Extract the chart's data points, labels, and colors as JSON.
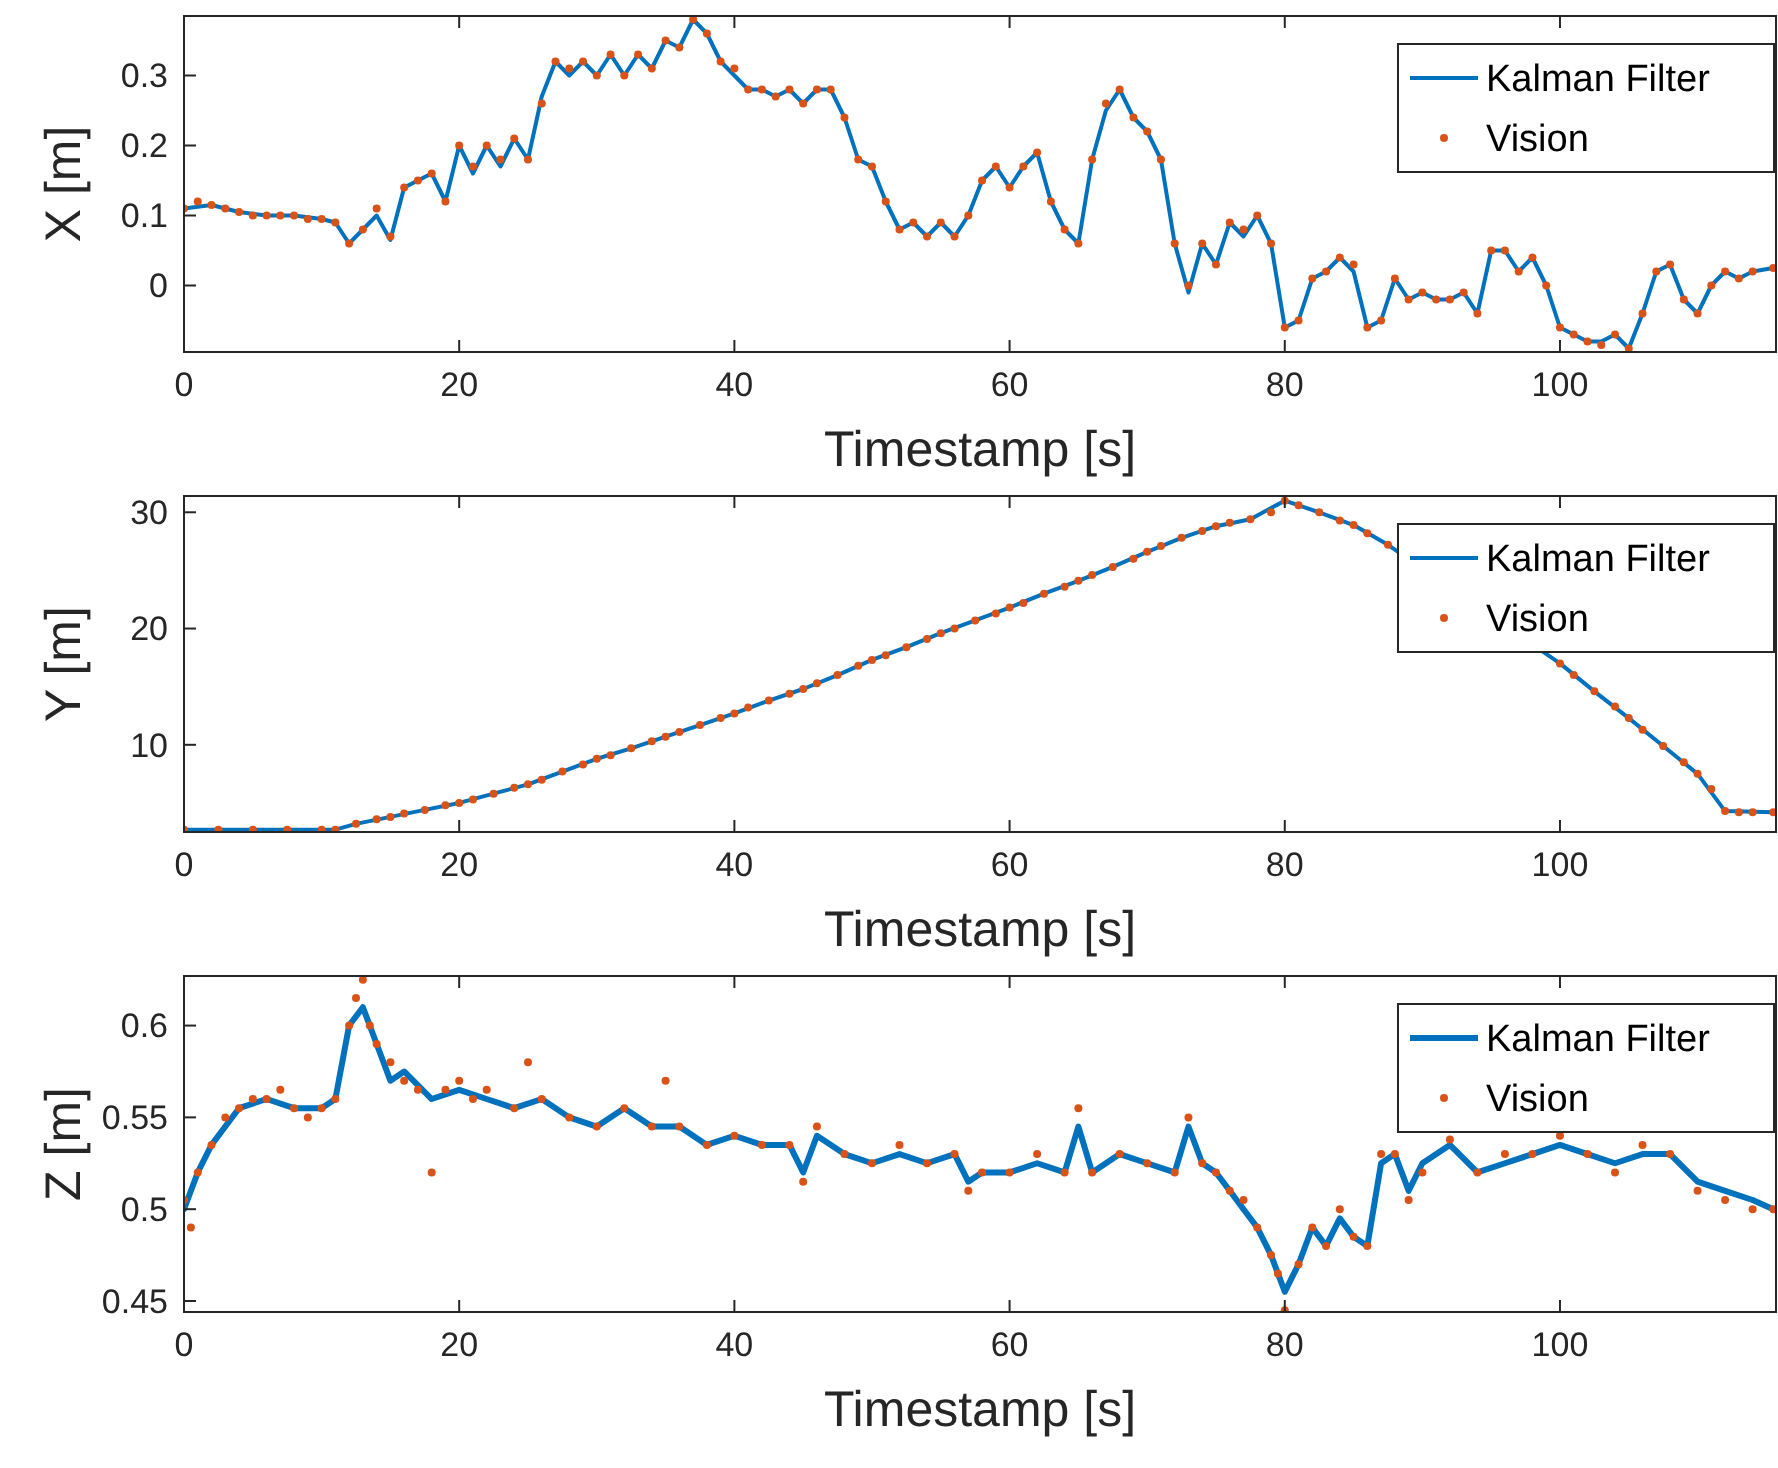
{
  "chart_data": [
    {
      "type": "line",
      "xlabel": "Timestamp [s]",
      "ylabel": "X [m]",
      "xlim": [
        0,
        115.7
      ],
      "xticks": [
        0,
        20,
        40,
        60,
        80,
        100
      ],
      "ylim": [
        -0.095,
        0.385
      ],
      "yticks": [
        0,
        0.1,
        0.2,
        0.3
      ],
      "legend": "top right",
      "series": [
        {
          "name": "Kalman Filter",
          "type": "line",
          "color": "#0072bd",
          "x": [
            0,
            2,
            4,
            6,
            8,
            10,
            11,
            12,
            13,
            14,
            15,
            16,
            17,
            18,
            19,
            20,
            21,
            22,
            23,
            24,
            25,
            26,
            27,
            28,
            29,
            30,
            31,
            32,
            33,
            34,
            35,
            36,
            37,
            38,
            39,
            40,
            41,
            42,
            43,
            44,
            45,
            46,
            47,
            48,
            49,
            50,
            51,
            52,
            53,
            54,
            55,
            56,
            57,
            58,
            59,
            60,
            61,
            62,
            63,
            64,
            65,
            66,
            67,
            68,
            69,
            70,
            71,
            72,
            73,
            74,
            75,
            76,
            77,
            78,
            79,
            80,
            81,
            82,
            83,
            84,
            85,
            86,
            87,
            88,
            89,
            90,
            91,
            92,
            93,
            94,
            95,
            96,
            97,
            98,
            99,
            100,
            101,
            102,
            103,
            104,
            105,
            106,
            107,
            108,
            109,
            110,
            111,
            112,
            113,
            114,
            115.5
          ],
          "values": [
            0.11,
            0.115,
            0.105,
            0.1,
            0.1,
            0.095,
            0.09,
            0.06,
            0.08,
            0.1,
            0.065,
            0.14,
            0.15,
            0.16,
            0.12,
            0.2,
            0.16,
            0.2,
            0.17,
            0.21,
            0.18,
            0.27,
            0.32,
            0.3,
            0.32,
            0.3,
            0.33,
            0.3,
            0.33,
            0.31,
            0.35,
            0.34,
            0.38,
            0.36,
            0.32,
            0.3,
            0.28,
            0.28,
            0.27,
            0.28,
            0.26,
            0.28,
            0.28,
            0.24,
            0.18,
            0.17,
            0.12,
            0.08,
            0.09,
            0.07,
            0.09,
            0.07,
            0.1,
            0.15,
            0.17,
            0.14,
            0.17,
            0.19,
            0.12,
            0.08,
            0.06,
            0.18,
            0.25,
            0.28,
            0.24,
            0.22,
            0.18,
            0.06,
            -0.01,
            0.06,
            0.03,
            0.09,
            0.07,
            0.1,
            0.06,
            -0.06,
            -0.05,
            0.01,
            0.02,
            0.04,
            0.02,
            -0.06,
            -0.05,
            0.01,
            -0.02,
            -0.01,
            -0.02,
            -0.02,
            -0.01,
            -0.04,
            0.05,
            0.05,
            0.02,
            0.04,
            0,
            -0.06,
            -0.07,
            -0.08,
            -0.08,
            -0.07,
            -0.09,
            -0.04,
            0.02,
            0.03,
            -0.02,
            -0.04,
            0,
            0.02,
            0.01,
            0.02,
            0.025
          ]
        },
        {
          "name": "Vision",
          "type": "scatter",
          "marker": "circle",
          "color": "#d95319",
          "x": [
            0,
            1,
            2,
            3,
            4,
            5,
            6,
            7,
            8,
            9,
            10,
            11,
            12,
            13,
            14,
            15,
            16,
            17,
            18,
            19,
            20,
            21,
            22,
            23,
            24,
            25,
            26,
            27,
            28,
            29,
            30,
            31,
            32,
            33,
            34,
            35,
            36,
            37,
            38,
            39,
            40,
            41,
            42,
            43,
            44,
            45,
            46,
            47,
            48,
            49,
            50,
            51,
            52,
            53,
            54,
            55,
            56,
            57,
            58,
            59,
            60,
            61,
            62,
            63,
            64,
            65,
            66,
            67,
            68,
            69,
            70,
            71,
            72,
            73,
            74,
            75,
            76,
            77,
            78,
            79,
            80,
            81,
            82,
            83,
            84,
            85,
            86,
            87,
            88,
            89,
            90,
            91,
            92,
            93,
            94,
            95,
            96,
            97,
            98,
            99,
            100,
            101,
            102,
            103,
            104,
            105,
            106,
            107,
            108,
            109,
            110,
            111,
            112,
            113,
            114,
            115.5
          ],
          "values": [
            0.11,
            0.12,
            0.115,
            0.11,
            0.105,
            0.1,
            0.1,
            0.1,
            0.1,
            0.095,
            0.095,
            0.09,
            0.06,
            0.08,
            0.11,
            0.07,
            0.14,
            0.15,
            0.16,
            0.12,
            0.2,
            0.17,
            0.2,
            0.18,
            0.21,
            0.18,
            0.26,
            0.32,
            0.31,
            0.32,
            0.3,
            0.33,
            0.3,
            0.33,
            0.31,
            0.35,
            0.34,
            0.38,
            0.36,
            0.32,
            0.31,
            0.28,
            0.28,
            0.27,
            0.28,
            0.26,
            0.28,
            0.28,
            0.24,
            0.18,
            0.17,
            0.12,
            0.08,
            0.09,
            0.07,
            0.09,
            0.07,
            0.1,
            0.15,
            0.17,
            0.14,
            0.17,
            0.19,
            0.12,
            0.08,
            0.06,
            0.18,
            0.26,
            0.28,
            0.24,
            0.22,
            0.18,
            0.06,
            0,
            0.06,
            0.03,
            0.09,
            0.08,
            0.1,
            0.06,
            -0.06,
            -0.05,
            0.01,
            0.02,
            0.04,
            0.03,
            -0.06,
            -0.05,
            0.01,
            -0.02,
            -0.01,
            -0.02,
            -0.02,
            -0.01,
            -0.04,
            0.05,
            0.05,
            0.02,
            0.04,
            0,
            -0.06,
            -0.07,
            -0.08,
            -0.085,
            -0.07,
            -0.09,
            -0.04,
            0.02,
            0.03,
            -0.02,
            -0.04,
            0,
            0.02,
            0.01,
            0.02,
            0.025
          ]
        }
      ]
    },
    {
      "type": "line",
      "xlabel": "Timestamp [s]",
      "ylabel": "Y [m]",
      "xlim": [
        0,
        115.7
      ],
      "xticks": [
        0,
        20,
        40,
        60,
        80,
        100
      ],
      "ylim": [
        2.5,
        31.4
      ],
      "yticks": [
        10,
        20,
        30
      ],
      "legend": "top right",
      "series": [
        {
          "name": "Kalman Filter",
          "type": "line",
          "color": "#0072bd",
          "x": [
            0,
            5,
            11,
            12.5,
            15,
            17.5,
            20,
            22.5,
            25,
            27.5,
            30,
            32.5,
            35,
            37.5,
            40,
            42.5,
            45,
            47.5,
            50,
            52.5,
            55,
            57.5,
            60,
            62.5,
            65,
            67.5,
            70,
            72.5,
            75,
            77.5,
            80,
            82.5,
            85,
            87.5,
            100,
            102.5,
            105,
            107.5,
            110,
            112,
            115.5
          ],
          "values": [
            2.7,
            2.7,
            2.7,
            3.2,
            3.8,
            4.4,
            5,
            5.8,
            6.6,
            7.7,
            8.8,
            9.7,
            10.7,
            11.7,
            12.7,
            13.8,
            14.8,
            16,
            17.3,
            18.4,
            19.6,
            20.7,
            21.8,
            23,
            24.1,
            25.3,
            26.6,
            27.8,
            28.8,
            29.4,
            31,
            30,
            28.9,
            27.2,
            17,
            14.6,
            12.3,
            9.9,
            7.5,
            4.3,
            4.2
          ]
        },
        {
          "name": "Vision",
          "type": "scatter",
          "marker": "circle",
          "color": "#d95319",
          "x": [
            0,
            2.5,
            5,
            7.5,
            10,
            11,
            12.5,
            14,
            15,
            16,
            17.5,
            19,
            20,
            21,
            22.5,
            24,
            25,
            26,
            27.5,
            29,
            30,
            31,
            32.5,
            34,
            35,
            36,
            37.5,
            39,
            40,
            41,
            42.5,
            44,
            45,
            46,
            47.5,
            49,
            50,
            51,
            52.5,
            54,
            55,
            56,
            57.5,
            59,
            60,
            61,
            62.5,
            64,
            65,
            66,
            67.5,
            69,
            70,
            71,
            72.5,
            74,
            75,
            76,
            77.5,
            79,
            80,
            81,
            82.5,
            84,
            85,
            86,
            87.5,
            100,
            101,
            102.5,
            104,
            105,
            106,
            107.5,
            109,
            110,
            111,
            112,
            113,
            114,
            115.5
          ],
          "values": [
            2.7,
            2.7,
            2.7,
            2.7,
            2.7,
            2.7,
            3.2,
            3.6,
            3.8,
            4.1,
            4.4,
            4.8,
            5,
            5.3,
            5.8,
            6.3,
            6.6,
            7,
            7.7,
            8.3,
            8.8,
            9.1,
            9.7,
            10.3,
            10.7,
            11.1,
            11.7,
            12.3,
            12.7,
            13.2,
            13.8,
            14.4,
            14.8,
            15.3,
            16,
            16.8,
            17.3,
            17.7,
            18.4,
            19.1,
            19.6,
            20,
            20.7,
            21.3,
            21.8,
            22.2,
            23,
            23.6,
            24.1,
            24.6,
            25.3,
            26,
            26.6,
            27.1,
            27.8,
            28.4,
            28.8,
            29.1,
            29.4,
            30,
            31,
            30.6,
            30,
            29.3,
            28.9,
            28.2,
            27.2,
            17,
            16,
            14.6,
            13.3,
            12.3,
            11.3,
            9.9,
            8.5,
            7.5,
            6.2,
            4.3,
            4.2,
            4.2,
            4.2
          ]
        }
      ]
    },
    {
      "type": "line",
      "xlabel": "Timestamp [s]",
      "ylabel": "Z [m]",
      "xlim": [
        0,
        115.7
      ],
      "xticks": [
        0,
        20,
        40,
        60,
        80,
        100
      ],
      "ylim": [
        0.444,
        0.627
      ],
      "yticks": [
        0.45,
        0.5,
        0.55,
        0.6
      ],
      "legend": "top right",
      "series": [
        {
          "name": "Kalman Filter",
          "type": "line",
          "color": "#0072bd",
          "x": [
            0,
            1,
            2,
            3,
            4,
            6,
            8,
            10,
            11,
            12,
            13,
            14,
            15,
            16,
            18,
            20,
            22,
            24,
            26,
            28,
            30,
            32,
            34,
            36,
            38,
            40,
            42,
            44,
            45,
            46,
            48,
            50,
            52,
            54,
            56,
            57,
            58,
            60,
            62,
            64,
            65,
            66,
            68,
            70,
            72,
            73,
            74,
            75,
            76,
            77,
            78,
            79,
            80,
            81,
            82,
            83,
            84,
            85,
            86,
            87,
            88,
            89,
            90,
            92,
            94,
            96,
            98,
            100,
            102,
            104,
            106,
            108,
            110,
            112,
            114,
            115.5
          ],
          "values": [
            0.5,
            0.52,
            0.535,
            0.545,
            0.555,
            0.56,
            0.555,
            0.555,
            0.56,
            0.6,
            0.61,
            0.59,
            0.57,
            0.575,
            0.56,
            0.565,
            0.56,
            0.555,
            0.56,
            0.55,
            0.545,
            0.555,
            0.545,
            0.545,
            0.535,
            0.54,
            0.535,
            0.535,
            0.52,
            0.54,
            0.53,
            0.525,
            0.53,
            0.525,
            0.53,
            0.515,
            0.52,
            0.52,
            0.525,
            0.52,
            0.545,
            0.52,
            0.53,
            0.525,
            0.52,
            0.545,
            0.525,
            0.52,
            0.51,
            0.5,
            0.49,
            0.475,
            0.455,
            0.47,
            0.49,
            0.48,
            0.495,
            0.485,
            0.48,
            0.525,
            0.53,
            0.51,
            0.525,
            0.535,
            0.52,
            0.525,
            0.53,
            0.535,
            0.53,
            0.525,
            0.53,
            0.53,
            0.515,
            0.51,
            0.505,
            0.5
          ]
        },
        {
          "name": "Vision",
          "type": "scatter",
          "marker": "circle",
          "color": "#d95319",
          "x": [
            0,
            0.5,
            1,
            2,
            3,
            4,
            5,
            6,
            7,
            8,
            9,
            10,
            11,
            12,
            12.5,
            13,
            13.5,
            14,
            15,
            16,
            17,
            18,
            19,
            20,
            21,
            22,
            24,
            25,
            26,
            28,
            30,
            32,
            34,
            35,
            36,
            38,
            40,
            42,
            44,
            45,
            46,
            48,
            50,
            52,
            54,
            56,
            57,
            58,
            60,
            62,
            64,
            65,
            66,
            68,
            70,
            72,
            73,
            74,
            75,
            76,
            77,
            78,
            79,
            79.5,
            80,
            81,
            82,
            83,
            84,
            85,
            86,
            87,
            88,
            89,
            90,
            92,
            94,
            96,
            98,
            100,
            102,
            104,
            106,
            108,
            110,
            112,
            114,
            115.5
          ],
          "values": [
            0.505,
            0.49,
            0.52,
            0.535,
            0.55,
            0.555,
            0.56,
            0.56,
            0.565,
            0.555,
            0.55,
            0.555,
            0.56,
            0.6,
            0.615,
            0.625,
            0.6,
            0.59,
            0.58,
            0.57,
            0.565,
            0.52,
            0.565,
            0.57,
            0.56,
            0.565,
            0.555,
            0.58,
            0.56,
            0.55,
            0.545,
            0.555,
            0.545,
            0.57,
            0.545,
            0.535,
            0.54,
            0.535,
            0.535,
            0.515,
            0.545,
            0.53,
            0.525,
            0.535,
            0.525,
            0.53,
            0.51,
            0.52,
            0.52,
            0.53,
            0.52,
            0.555,
            0.52,
            0.53,
            0.525,
            0.52,
            0.55,
            0.525,
            0.52,
            0.51,
            0.505,
            0.49,
            0.475,
            0.465,
            0.445,
            0.47,
            0.49,
            0.48,
            0.5,
            0.485,
            0.48,
            0.53,
            0.53,
            0.505,
            0.52,
            0.538,
            0.52,
            0.53,
            0.53,
            0.54,
            0.53,
            0.52,
            0.535,
            0.53,
            0.51,
            0.505,
            0.5,
            0.5
          ]
        }
      ]
    }
  ]
}
